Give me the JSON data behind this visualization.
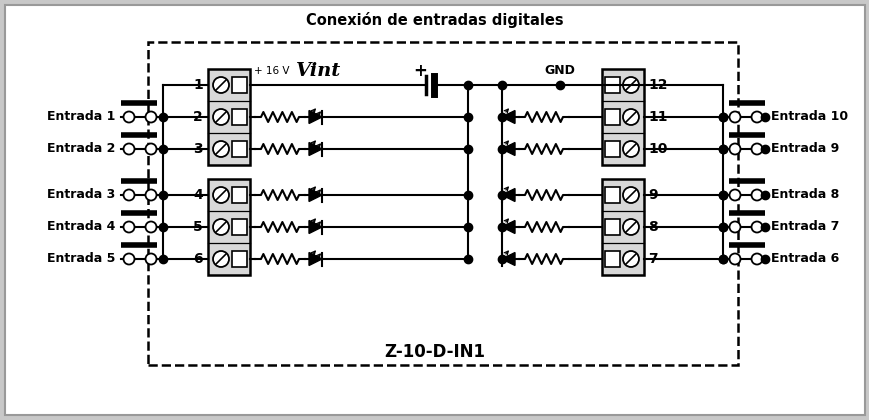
{
  "title": "Conexión de entradas digitales",
  "module_label": "Z-10-D-IN1",
  "vint_label": "Vint",
  "plus16v_label": "+ 16 V",
  "gnd_label": "GND",
  "plus_label": "+",
  "left_labels": [
    "Entrada 1",
    "Entrada 2",
    "Entrada 3",
    "Entrada 4",
    "Entrada 5"
  ],
  "right_labels": [
    "Entrada 10",
    "Entrada 9",
    "Entrada 8",
    "Entrada 7",
    "Entrada 6"
  ],
  "bg_color": "#c8c8c8",
  "line_color": "#000000",
  "terminal_fill": "#d8d8d8"
}
